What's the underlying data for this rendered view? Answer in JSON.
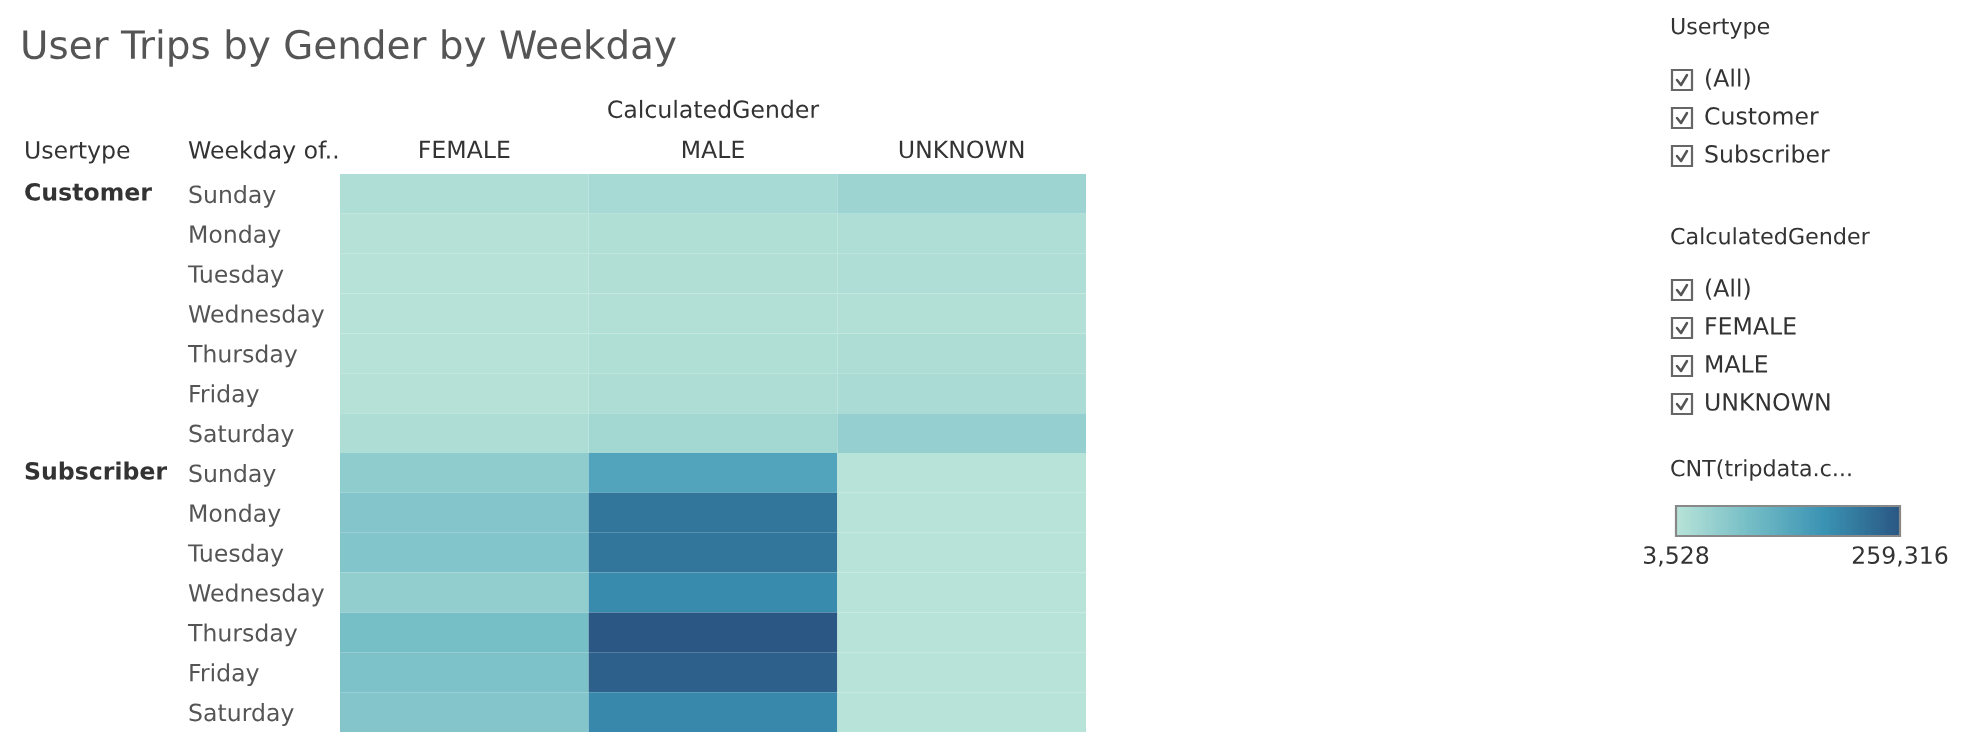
{
  "chart_data": {
    "type": "heatmap",
    "title": "User Trips by Gender by Weekday",
    "xlabel": "CalculatedGender",
    "ylabel": "Weekday of..",
    "y2label": "Usertype",
    "clabel": "CNT(tripdata.c...",
    "categories": [
      "FEMALE",
      "MALE",
      "UNKNOWN"
    ],
    "y_categories": [
      "Sunday",
      "Monday",
      "Tuesday",
      "Wednesday",
      "Thursday",
      "Friday",
      "Saturday",
      "Sunday",
      "Monday",
      "Tuesday",
      "Wednesday",
      "Thursday",
      "Friday",
      "Saturday"
    ],
    "y2_categories": [
      "Customer",
      null,
      null,
      null,
      null,
      null,
      null,
      "Subscriber",
      null,
      null,
      null,
      null,
      null,
      null
    ],
    "cells": [
      [
        15000,
        25000,
        38000
      ],
      [
        8000,
        14000,
        16000
      ],
      [
        7000,
        13000,
        15000
      ],
      [
        6000,
        11000,
        12000
      ],
      [
        7000,
        14000,
        17000
      ],
      [
        8000,
        17000,
        22000
      ],
      [
        17000,
        30000,
        48000
      ],
      [
        55000,
        140000,
        4000
      ],
      [
        70000,
        215000,
        4000
      ],
      [
        72000,
        215000,
        4000
      ],
      [
        52000,
        185000,
        4000
      ],
      [
        85000,
        259316,
        3528
      ],
      [
        78000,
        245000,
        4000
      ],
      [
        70000,
        190000,
        4000
      ]
    ],
    "clim": [
      3528,
      259316
    ],
    "cticks": [
      {
        "value": 3528,
        "label": "3,528"
      },
      {
        "value": 259316,
        "label": "259,316"
      }
    ],
    "annotations": [
      "Usertype",
      "(All)",
      "Customer",
      "Subscriber",
      "CalculatedGender",
      "(All)",
      "FEMALE",
      "MALE",
      "UNKNOWN"
    ]
  }
}
